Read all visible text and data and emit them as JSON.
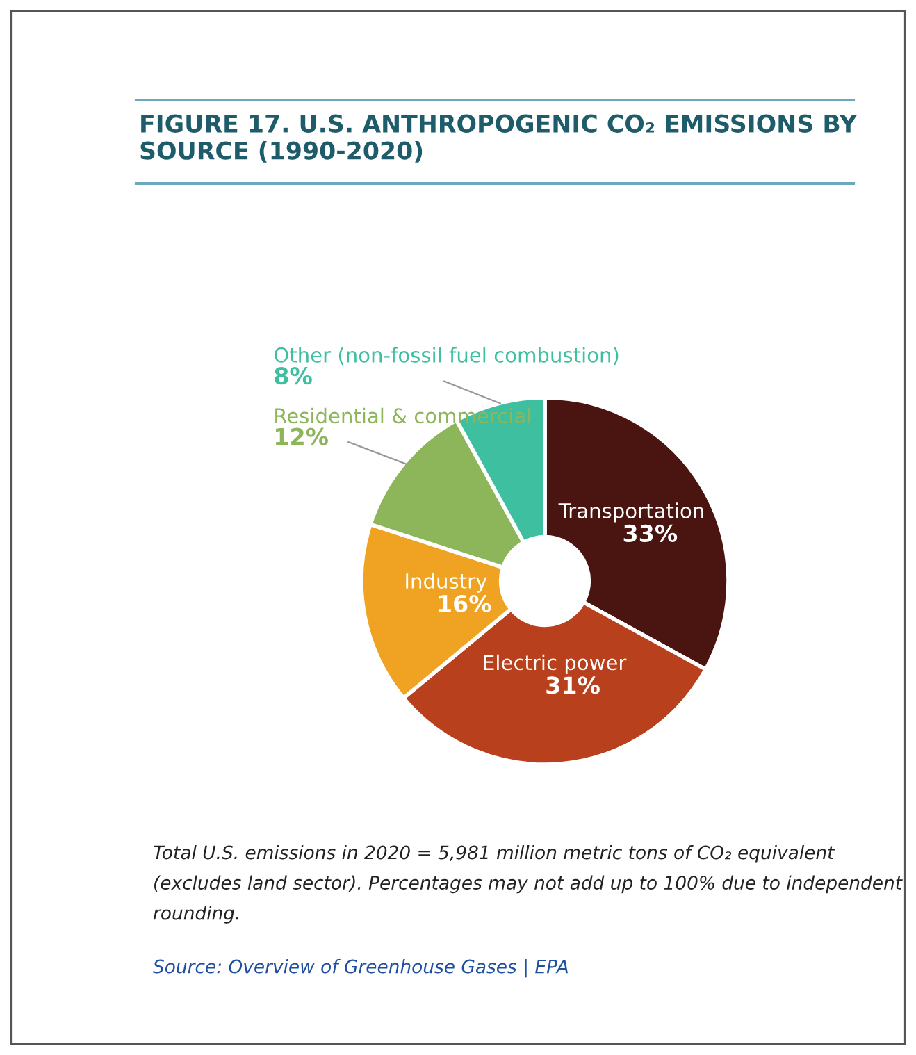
{
  "chart_data": {
    "type": "donut",
    "title": "FIGURE 17. U.S. ANTHROPOGENIC CO₂ EMISSIONS BY SOURCE (1990-2020)",
    "categories": [
      "Transportation",
      "Electric power",
      "Industry",
      "Residential & commercial",
      "Other (non-fossil fuel combustion)"
    ],
    "values": [
      33,
      31,
      16,
      12,
      8
    ],
    "colors": [
      "#4a1510",
      "#b8401d",
      "#f0a322",
      "#8db55a",
      "#3dbfa0"
    ],
    "value_labels": [
      "33%",
      "31%",
      "16%",
      "12%",
      "8%"
    ],
    "annotations": [
      "Total U.S. emissions in 2020 = 5,981 million metric tons of CO₂ equivalent (excludes land sector). Percentages may not add up to 100% due to independent rounding.",
      "Source: Overview of Greenhouse Gases | EPA"
    ]
  }
}
